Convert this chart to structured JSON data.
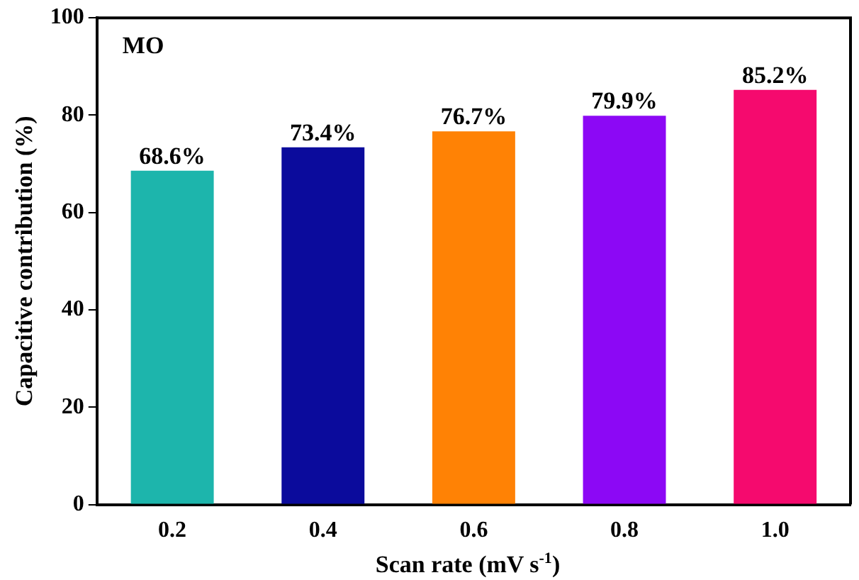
{
  "chart_data": {
    "type": "bar",
    "xlabel": "Scan rate (mV s$^{-1}$)",
    "ylabel": "Capacitive contribution (%)",
    "annotations": [
      "MO"
    ],
    "categories": [
      "0.2",
      "0.4",
      "0.6",
      "0.8",
      "1.0"
    ],
    "values": [
      68.6,
      73.4,
      76.7,
      79.9,
      85.2
    ],
    "colors": [
      "#1db5ac",
      "#0b0b9c",
      "#ff8205",
      "#8c08f5",
      "#f50a6e"
    ],
    "value_labels": [
      "68.6%",
      "73.4%",
      "76.7%",
      "79.9%",
      "85.2%"
    ],
    "ylim": [
      0,
      100
    ],
    "yticks": [
      0,
      20,
      40,
      60,
      80,
      100
    ],
    "grid": false,
    "legend": false
  }
}
